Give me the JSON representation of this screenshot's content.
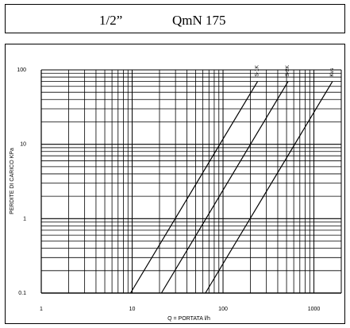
{
  "header": {
    "size": "1/2”",
    "model": "QmN 175"
  },
  "chart_data": {
    "type": "line",
    "x_scale": "log",
    "y_scale": "log",
    "xlim": [
      1,
      2000
    ],
    "ylim": [
      0.1,
      100
    ],
    "xlabel": "Q = PORTATA l/h",
    "ylabel": "PERDITE DI CARICO KPa",
    "x_ticks": [
      {
        "value": 1,
        "label": "1"
      },
      {
        "value": 10,
        "label": "10"
      },
      {
        "value": 100,
        "label": "100"
      },
      {
        "value": 1000,
        "label": "1000"
      }
    ],
    "y_ticks": [
      {
        "value": 0.1,
        "label": "0.1"
      },
      {
        "value": 1,
        "label": "1"
      },
      {
        "value": 10,
        "label": "10"
      },
      {
        "value": 100,
        "label": "100"
      }
    ],
    "grid": true,
    "series": [
      {
        "name": "S-1K",
        "x": [
          9.6,
          240
        ],
        "y": [
          0.1,
          70
        ]
      },
      {
        "name": "S-2K",
        "x": [
          21,
          520
        ],
        "y": [
          0.1,
          70
        ]
      },
      {
        "name": "Kvs",
        "x": [
          64,
          1600
        ],
        "y": [
          0.1,
          70
        ]
      }
    ]
  }
}
